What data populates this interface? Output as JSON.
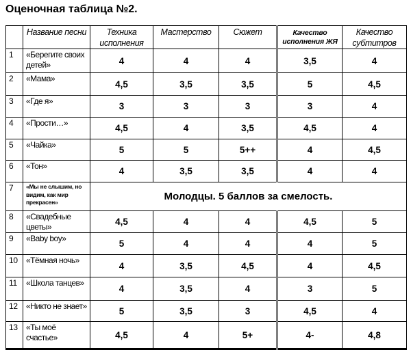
{
  "title": "Оценочная таблица №2.",
  "colors": {
    "text": "#000000",
    "grid_border": "#000000",
    "thick_divider_gray": "#7f7f7f",
    "background": "#ffffff"
  },
  "table": {
    "columns": [
      "",
      "Название песни",
      "Техника исполнения",
      "Мастерство",
      "Сюжет",
      "Качество исполнения ЖЯ",
      "Качество субтитров"
    ],
    "rows": [
      {
        "num": "1",
        "song": "«Берегите своих детей»",
        "scores": [
          "4",
          "4",
          "4",
          "3,5",
          "4"
        ]
      },
      {
        "num": "2",
        "song": "«Мама»",
        "scores": [
          "4,5",
          "3,5",
          "3,5",
          "5",
          "4,5"
        ]
      },
      {
        "num": "3",
        "song": "«Где я»",
        "scores": [
          "3",
          "3",
          "3",
          "3",
          "4"
        ]
      },
      {
        "num": "4",
        "song": "«Прости…»",
        "scores": [
          "4,5",
          "4",
          "3,5",
          "4,5",
          "4"
        ]
      },
      {
        "num": "5",
        "song": "«Чайка»",
        "scores": [
          "5",
          "5",
          "5++",
          "4",
          "4,5"
        ]
      },
      {
        "num": "6",
        "song": "«Тон»",
        "scores": [
          "4",
          "3,5",
          "3,5",
          "4",
          "4"
        ]
      },
      {
        "num": "7",
        "song": "«Мы не слышим, но видим, как мир прекрасен»",
        "note": "Молодцы. 5 баллов за смелость."
      },
      {
        "num": "8",
        "song": "«Свадебные цветы»",
        "scores": [
          "4,5",
          "4",
          "4",
          "4,5",
          "5"
        ]
      },
      {
        "num": "9",
        "song": "«Baby boy»",
        "scores": [
          "5",
          "4",
          "4",
          "4",
          "5"
        ]
      },
      {
        "num": "10",
        "song": "«Тёмная ночь»",
        "scores": [
          "4",
          "3,5",
          "4,5",
          "4",
          "4,5"
        ]
      },
      {
        "num": "11",
        "song": "«Школа танцев»",
        "scores": [
          "4",
          "3,5",
          "4",
          "3",
          "5"
        ]
      },
      {
        "num": "12",
        "song": "«Никто не знает»",
        "scores": [
          "5",
          "3,5",
          "3",
          "4,5",
          "4"
        ]
      },
      {
        "num": "13",
        "song": "«Ты моё счастье»",
        "scores": [
          "4,5",
          "4",
          "5+",
          "4-",
          "4,8"
        ]
      }
    ]
  }
}
